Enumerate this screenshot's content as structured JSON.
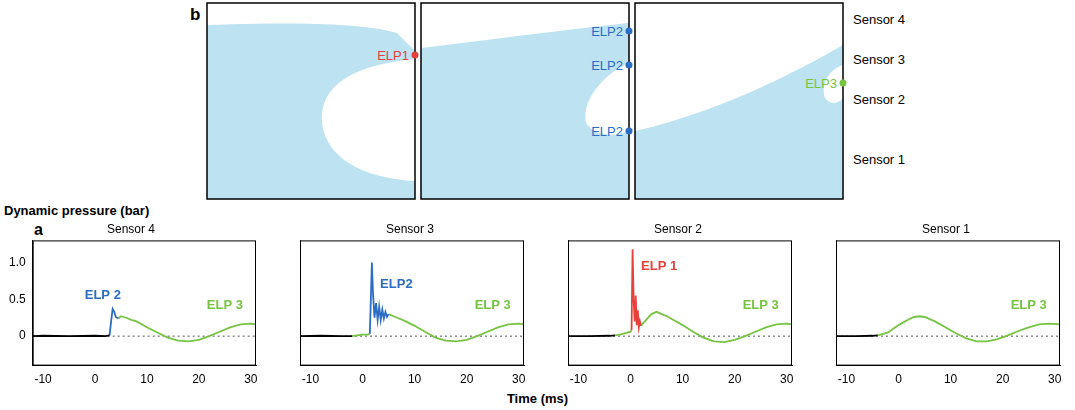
{
  "diagram": {
    "letter": "b",
    "panels": [
      {
        "markers": [
          {
            "label": "ELP1",
            "color": "#e8413c"
          }
        ]
      },
      {
        "markers": [
          {
            "label": "ELP2",
            "color": "#2b6cc4"
          },
          {
            "label": "ELP2",
            "color": "#2b6cc4"
          },
          {
            "label": "ELP2",
            "color": "#2b6cc4"
          }
        ]
      },
      {
        "markers": [
          {
            "label": "ELP3",
            "color": "#76c442"
          }
        ]
      }
    ],
    "sensors": [
      "Sensor 4",
      "Sensor 3",
      "Sensor 2",
      "Sensor 1"
    ]
  },
  "figure": {
    "letter": "a",
    "y_label": "Dynamic pressure (bar)",
    "x_label": "Time (ms)"
  },
  "chart_data": [
    {
      "type": "line",
      "title": "Sensor 4",
      "xlim": [
        -12,
        31
      ],
      "xticks": [
        -10,
        0,
        10,
        20,
        30
      ],
      "ylim": [
        -0.4,
        1.3
      ],
      "yticks": [
        0,
        0.5,
        {
          "value": 1,
          "label": "1.0"
        }
      ],
      "grid": false,
      "baseline": {
        "y": 0,
        "line_style": "dotted"
      },
      "series": [
        {
          "color": "#000000",
          "x": [
            -12,
            -10,
            -5,
            0,
            2,
            2.8
          ],
          "values": [
            0,
            0.005,
            0,
            0.005,
            0,
            0.01
          ]
        },
        {
          "color": "#2b6cc4",
          "x": [
            2.8,
            3.1,
            3.4,
            3.7,
            4.0,
            4.5
          ],
          "values": [
            0.01,
            0.2,
            0.37,
            0.33,
            0.26,
            0.24
          ]
        },
        {
          "color": "#76c442",
          "x": [
            4.5,
            5,
            6,
            7,
            8,
            10,
            12,
            14,
            16,
            18,
            20,
            22,
            24,
            26,
            28,
            30,
            31
          ],
          "values": [
            0.24,
            0.27,
            0.25,
            0.22,
            0.2,
            0.12,
            0.05,
            -0.02,
            -0.06,
            -0.07,
            -0.05,
            0,
            0.06,
            0.12,
            0.16,
            0.17,
            0.16
          ]
        }
      ],
      "annotations": [
        {
          "text": "ELP 2",
          "color": "#2b6cc4",
          "x": 1.5,
          "y": 0.55
        },
        {
          "text": "ELP 3",
          "color": "#76c442",
          "x": 25,
          "y": 0.42
        }
      ]
    },
    {
      "type": "line",
      "title": "Sensor 3",
      "xlim": [
        -12,
        31
      ],
      "xticks": [
        -10,
        0,
        10,
        20,
        30
      ],
      "ylim": [
        -0.4,
        1.3
      ],
      "yticks": [
        0,
        0.5,
        {
          "value": 1,
          "label": "1.0"
        }
      ],
      "grid": false,
      "tick_labels": "x",
      "baseline": {
        "y": 0,
        "line_style": "dotted"
      },
      "series": [
        {
          "color": "#000000",
          "x": [
            -12,
            -8,
            -4,
            -2
          ],
          "values": [
            0,
            0.005,
            0,
            0
          ]
        },
        {
          "color": "#76c442",
          "x": [
            -2,
            -1,
            0,
            1,
            1.4
          ],
          "values": [
            0,
            0.01,
            0.02,
            0.02,
            0.03
          ]
        },
        {
          "color": "#2b6cc4",
          "x": [
            1.4,
            1.6,
            1.8,
            2.0,
            2.3,
            2.6,
            2.9,
            3.2,
            3.5,
            3.8,
            4.1,
            4.4,
            4.7,
            5.0
          ],
          "values": [
            0.03,
            0.5,
            1.0,
            0.6,
            0.25,
            0.45,
            0.22,
            0.4,
            0.22,
            0.36,
            0.24,
            0.33,
            0.26,
            0.3
          ]
        },
        {
          "color": "#76c442",
          "x": [
            5,
            6,
            7,
            8,
            10,
            12,
            14,
            16,
            18,
            20,
            22,
            24,
            26,
            28,
            30,
            31
          ],
          "values": [
            0.3,
            0.27,
            0.24,
            0.21,
            0.14,
            0.06,
            -0.02,
            -0.06,
            -0.07,
            -0.05,
            0,
            0.06,
            0.12,
            0.16,
            0.17,
            0.16
          ]
        }
      ],
      "annotations": [
        {
          "text": "ELP2",
          "color": "#2b6cc4",
          "x": 6.5,
          "y": 0.7
        },
        {
          "text": "ELP 3",
          "color": "#76c442",
          "x": 25,
          "y": 0.42
        }
      ]
    },
    {
      "type": "line",
      "title": "Sensor 2",
      "xlim": [
        -12,
        31
      ],
      "xticks": [
        -10,
        0,
        10,
        20,
        30
      ],
      "ylim": [
        -0.4,
        1.3
      ],
      "yticks": [
        0,
        0.5,
        {
          "value": 1,
          "label": "1.0"
        }
      ],
      "grid": false,
      "tick_labels": "x",
      "baseline": {
        "y": 0,
        "line_style": "dotted"
      },
      "series": [
        {
          "color": "#000000",
          "x": [
            -12,
            -8,
            -4,
            -3
          ],
          "values": [
            0,
            0,
            0.005,
            0.01
          ]
        },
        {
          "color": "#76c442",
          "x": [
            -3,
            -2,
            -1,
            0,
            0.2
          ],
          "values": [
            0.01,
            0.02,
            0.04,
            0.06,
            0.08
          ]
        },
        {
          "color": "#e8413c",
          "x": [
            0.2,
            0.4,
            0.6,
            0.8,
            1.0,
            1.2,
            1.4,
            1.6,
            1.8,
            2.0
          ],
          "values": [
            0.08,
            1.18,
            0.5,
            0.2,
            0.55,
            0.15,
            0.35,
            0.12,
            0.2,
            0.14
          ]
        },
        {
          "color": "#76c442",
          "x": [
            2,
            3,
            4,
            5,
            6,
            7,
            8,
            10,
            12,
            14,
            16,
            18,
            20,
            22,
            24,
            26,
            28,
            30,
            31
          ],
          "values": [
            0.14,
            0.22,
            0.3,
            0.33,
            0.3,
            0.27,
            0.23,
            0.15,
            0.06,
            -0.02,
            -0.07,
            -0.08,
            -0.05,
            0,
            0.06,
            0.12,
            0.16,
            0.17,
            0.16
          ]
        }
      ],
      "annotations": [
        {
          "text": "ELP 1",
          "color": "#e8413c",
          "x": 5.5,
          "y": 0.95
        },
        {
          "text": "ELP 3",
          "color": "#76c442",
          "x": 25,
          "y": 0.42
        }
      ]
    },
    {
      "type": "line",
      "title": "Sensor 1",
      "xlim": [
        -12,
        31
      ],
      "xticks": [
        -10,
        0,
        10,
        20,
        30
      ],
      "ylim": [
        -0.4,
        1.3
      ],
      "yticks": [
        0,
        0.5,
        {
          "value": 1,
          "label": "1.0"
        }
      ],
      "grid": false,
      "tick_labels": "x",
      "baseline": {
        "y": 0,
        "line_style": "dotted"
      },
      "series": [
        {
          "color": "#000000",
          "x": [
            -12,
            -8,
            -5,
            -4
          ],
          "values": [
            0,
            0,
            0.005,
            0.01
          ]
        },
        {
          "color": "#76c442",
          "x": [
            -4,
            -2,
            0,
            2,
            3,
            4,
            5,
            7,
            9,
            11,
            13,
            15,
            17,
            19,
            21,
            23,
            25,
            27,
            29,
            31
          ],
          "values": [
            0.01,
            0.05,
            0.15,
            0.23,
            0.26,
            0.27,
            0.26,
            0.2,
            0.12,
            0.04,
            -0.03,
            -0.07,
            -0.07,
            -0.04,
            0.01,
            0.07,
            0.12,
            0.16,
            0.17,
            0.16
          ]
        }
      ],
      "annotations": [
        {
          "text": "ELP 3",
          "color": "#76c442",
          "x": 25,
          "y": 0.42
        }
      ]
    }
  ]
}
